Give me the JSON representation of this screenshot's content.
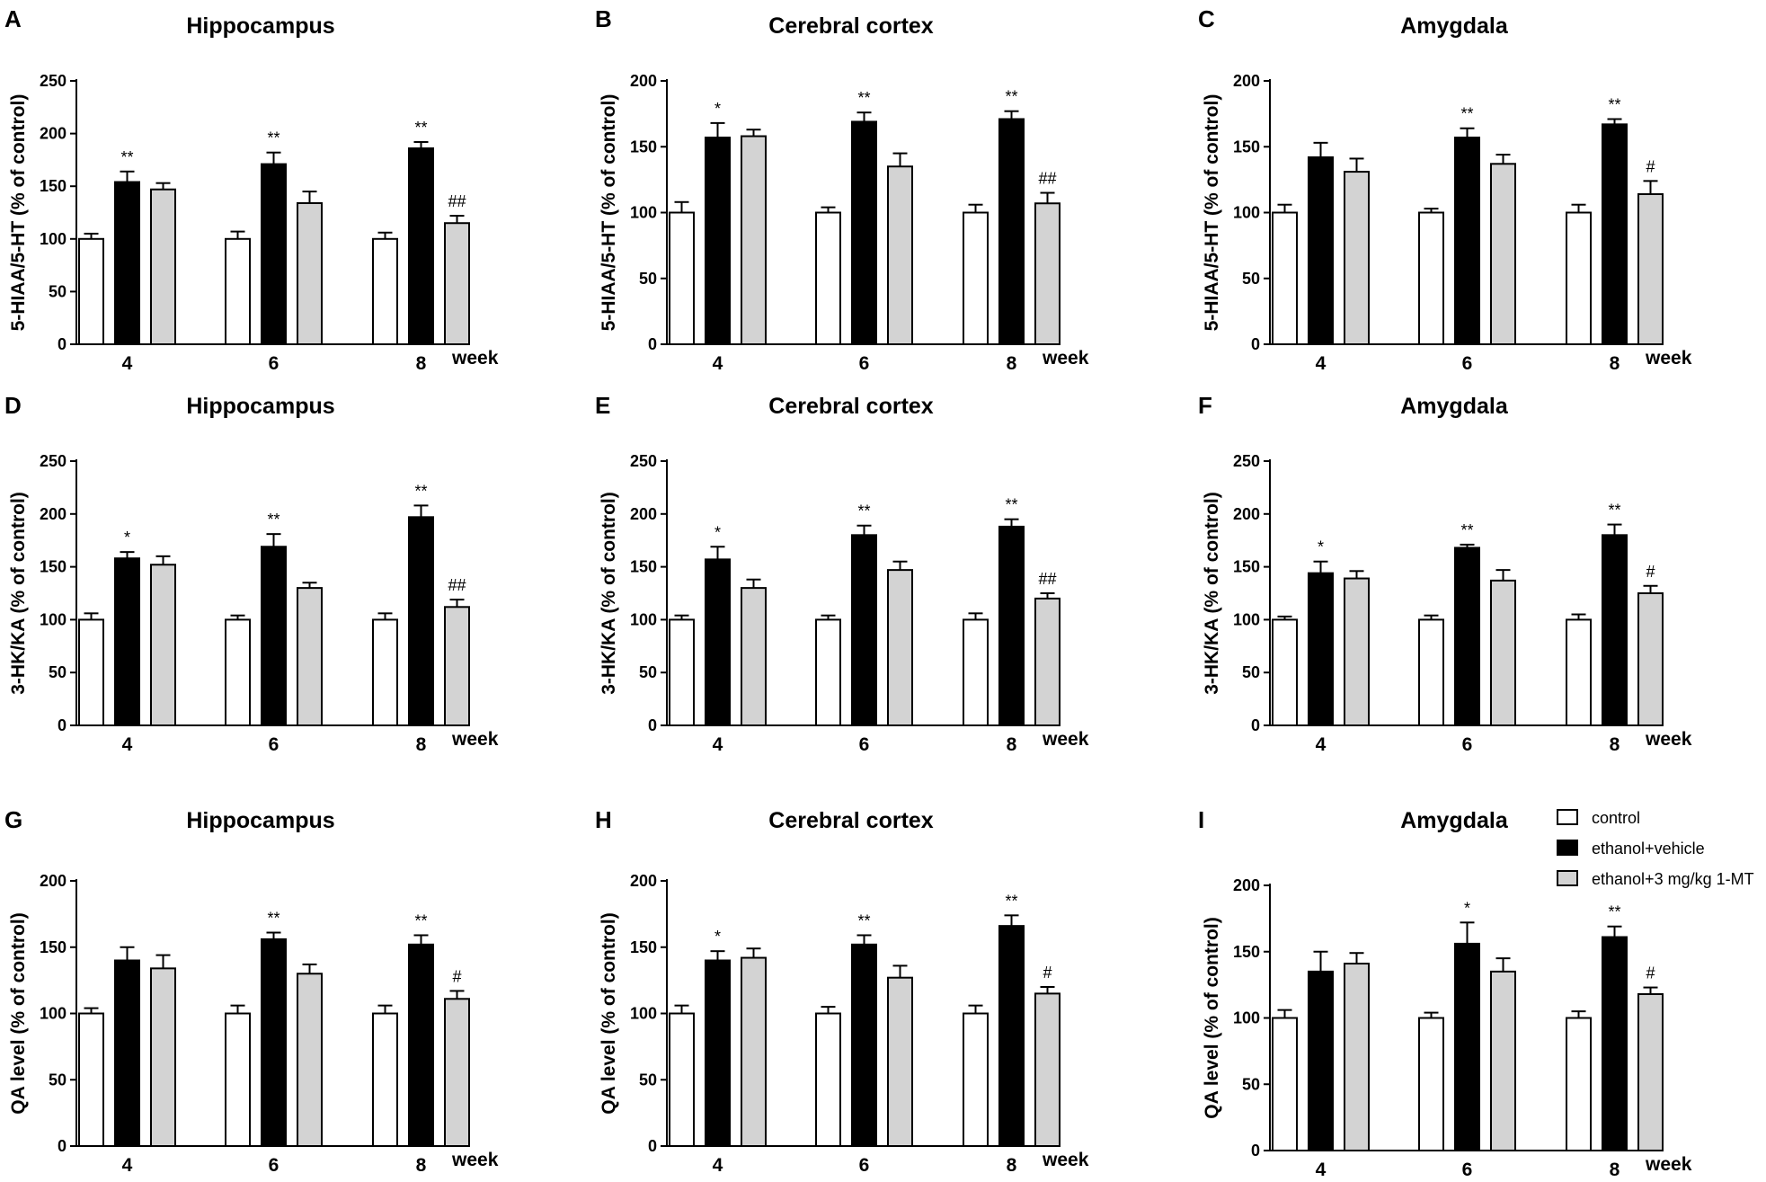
{
  "figure": {
    "legend": {
      "entries": [
        {
          "label": "control",
          "color": "#ffffff"
        },
        {
          "label": "ethanol+vehicle",
          "color": "#000000"
        },
        {
          "label": "ethanol+3 mg/kg 1-MT",
          "color": "#d3d3d3"
        }
      ]
    }
  },
  "chart_data": [
    {
      "panel": "A",
      "type": "bar",
      "title": "Hippocampus",
      "ylabel": "5-HIAA/5-HT (% of control)",
      "xlabel": "week",
      "categories": [
        "4",
        "6",
        "8"
      ],
      "ylim": [
        0,
        250
      ],
      "yticks": [
        "0",
        "50",
        "100",
        "150",
        "200",
        "250"
      ],
      "series": [
        {
          "name": "control",
          "values": [
            100,
            100,
            100
          ],
          "errors": [
            5,
            7,
            6
          ],
          "annotations": [
            "",
            "",
            ""
          ]
        },
        {
          "name": "ethanol+vehicle",
          "values": [
            154,
            171,
            186
          ],
          "errors": [
            10,
            11,
            6
          ],
          "annotations": [
            "**",
            "**",
            "**"
          ]
        },
        {
          "name": "ethanol+3 mg/kg 1-MT",
          "values": [
            147,
            134,
            115
          ],
          "errors": [
            6,
            11,
            7
          ],
          "annotations": [
            "",
            "",
            "##"
          ]
        }
      ]
    },
    {
      "panel": "B",
      "type": "bar",
      "title": "Cerebral cortex",
      "ylabel": "5-HIAA/5-HT (% of control)",
      "xlabel": "week",
      "categories": [
        "4",
        "6",
        "8"
      ],
      "ylim": [
        0,
        200
      ],
      "yticks": [
        "0",
        "50",
        "100",
        "150",
        "200"
      ],
      "series": [
        {
          "name": "control",
          "values": [
            100,
            100,
            100
          ],
          "errors": [
            8,
            4,
            6
          ],
          "annotations": [
            "",
            "",
            ""
          ]
        },
        {
          "name": "ethanol+vehicle",
          "values": [
            157,
            169,
            171
          ],
          "errors": [
            11,
            7,
            6
          ],
          "annotations": [
            "*",
            "**",
            "**"
          ]
        },
        {
          "name": "ethanol+3 mg/kg 1-MT",
          "values": [
            158,
            135,
            107
          ],
          "errors": [
            5,
            10,
            8
          ],
          "annotations": [
            "",
            "",
            "##"
          ]
        }
      ]
    },
    {
      "panel": "C",
      "type": "bar",
      "title": "Amygdala",
      "ylabel": "5-HIAA/5-HT (% of control)",
      "xlabel": "week",
      "categories": [
        "4",
        "6",
        "8"
      ],
      "ylim": [
        0,
        200
      ],
      "yticks": [
        "0",
        "50",
        "100",
        "150",
        "200"
      ],
      "series": [
        {
          "name": "control",
          "values": [
            100,
            100,
            100
          ],
          "errors": [
            6,
            3,
            6
          ],
          "annotations": [
            "",
            "",
            ""
          ]
        },
        {
          "name": "ethanol+vehicle",
          "values": [
            142,
            157,
            167
          ],
          "errors": [
            11,
            7,
            4
          ],
          "annotations": [
            "",
            "**",
            "**"
          ]
        },
        {
          "name": "ethanol+3 mg/kg 1-MT",
          "values": [
            131,
            137,
            114
          ],
          "errors": [
            10,
            7,
            10
          ],
          "annotations": [
            "",
            "",
            "#"
          ]
        }
      ]
    },
    {
      "panel": "D",
      "type": "bar",
      "title": "Hippocampus",
      "ylabel": "3-HK/KA (% of control)",
      "xlabel": "week",
      "categories": [
        "4",
        "6",
        "8"
      ],
      "ylim": [
        0,
        250
      ],
      "yticks": [
        "0",
        "50",
        "100",
        "150",
        "200",
        "250"
      ],
      "series": [
        {
          "name": "control",
          "values": [
            100,
            100,
            100
          ],
          "errors": [
            6,
            4,
            6
          ],
          "annotations": [
            "",
            "",
            ""
          ]
        },
        {
          "name": "ethanol+vehicle",
          "values": [
            158,
            169,
            197
          ],
          "errors": [
            6,
            12,
            11
          ],
          "annotations": [
            "*",
            "**",
            "**"
          ]
        },
        {
          "name": "ethanol+3 mg/kg 1-MT",
          "values": [
            152,
            130,
            112
          ],
          "errors": [
            8,
            5,
            7
          ],
          "annotations": [
            "",
            "",
            "##"
          ]
        }
      ]
    },
    {
      "panel": "E",
      "type": "bar",
      "title": "Cerebral cortex",
      "ylabel": "3-HK/KA (% of control)",
      "xlabel": "week",
      "categories": [
        "4",
        "6",
        "8"
      ],
      "ylim": [
        0,
        250
      ],
      "yticks": [
        "0",
        "50",
        "100",
        "150",
        "200",
        "250"
      ],
      "series": [
        {
          "name": "control",
          "values": [
            100,
            100,
            100
          ],
          "errors": [
            4,
            4,
            6
          ],
          "annotations": [
            "",
            "",
            ""
          ]
        },
        {
          "name": "ethanol+vehicle",
          "values": [
            157,
            180,
            188
          ],
          "errors": [
            12,
            9,
            7
          ],
          "annotations": [
            "*",
            "**",
            "**"
          ]
        },
        {
          "name": "ethanol+3 mg/kg 1-MT",
          "values": [
            130,
            147,
            120
          ],
          "errors": [
            8,
            8,
            5
          ],
          "annotations": [
            "",
            "",
            "##"
          ]
        }
      ]
    },
    {
      "panel": "F",
      "type": "bar",
      "title": "Amygdala",
      "ylabel": "3-HK/KA (% of control)",
      "xlabel": "week",
      "categories": [
        "4",
        "6",
        "8"
      ],
      "ylim": [
        0,
        250
      ],
      "yticks": [
        "0",
        "50",
        "100",
        "150",
        "200",
        "250"
      ],
      "series": [
        {
          "name": "control",
          "values": [
            100,
            100,
            100
          ],
          "errors": [
            3,
            4,
            5
          ],
          "annotations": [
            "",
            "",
            ""
          ]
        },
        {
          "name": "ethanol+vehicle",
          "values": [
            144,
            168,
            180
          ],
          "errors": [
            11,
            3,
            10
          ],
          "annotations": [
            "*",
            "**",
            "**"
          ]
        },
        {
          "name": "ethanol+3 mg/kg 1-MT",
          "values": [
            139,
            137,
            125
          ],
          "errors": [
            7,
            10,
            7
          ],
          "annotations": [
            "",
            "",
            "#"
          ]
        }
      ]
    },
    {
      "panel": "G",
      "type": "bar",
      "title": "Hippocampus",
      "ylabel": "QA level (% of control)",
      "xlabel": "week",
      "categories": [
        "4",
        "6",
        "8"
      ],
      "ylim": [
        0,
        200
      ],
      "yticks": [
        "0",
        "50",
        "100",
        "150",
        "200"
      ],
      "series": [
        {
          "name": "control",
          "values": [
            100,
            100,
            100
          ],
          "errors": [
            4,
            6,
            6
          ],
          "annotations": [
            "",
            "",
            ""
          ]
        },
        {
          "name": "ethanol+vehicle",
          "values": [
            140,
            156,
            152
          ],
          "errors": [
            10,
            5,
            7
          ],
          "annotations": [
            "",
            "**",
            "**"
          ]
        },
        {
          "name": "ethanol+3 mg/kg 1-MT",
          "values": [
            134,
            130,
            111
          ],
          "errors": [
            10,
            7,
            6
          ],
          "annotations": [
            "",
            "",
            "#"
          ]
        }
      ]
    },
    {
      "panel": "H",
      "type": "bar",
      "title": "Cerebral cortex",
      "ylabel": "QA level (% of control)",
      "xlabel": "week",
      "categories": [
        "4",
        "6",
        "8"
      ],
      "ylim": [
        0,
        200
      ],
      "yticks": [
        "0",
        "50",
        "100",
        "150",
        "200"
      ],
      "series": [
        {
          "name": "control",
          "values": [
            100,
            100,
            100
          ],
          "errors": [
            6,
            5,
            6
          ],
          "annotations": [
            "",
            "",
            ""
          ]
        },
        {
          "name": "ethanol+vehicle",
          "values": [
            140,
            152,
            166
          ],
          "errors": [
            7,
            7,
            8
          ],
          "annotations": [
            "*",
            "**",
            "**"
          ]
        },
        {
          "name": "ethanol+3 mg/kg 1-MT",
          "values": [
            142,
            127,
            115
          ],
          "errors": [
            7,
            9,
            5
          ],
          "annotations": [
            "",
            "",
            "#"
          ]
        }
      ]
    },
    {
      "panel": "I",
      "type": "bar",
      "title": "Amygdala",
      "ylabel": "QA level (% of control)",
      "xlabel": "week",
      "categories": [
        "4",
        "6",
        "8"
      ],
      "ylim": [
        0,
        200
      ],
      "yticks": [
        "0",
        "50",
        "100",
        "150",
        "200"
      ],
      "series": [
        {
          "name": "control",
          "values": [
            100,
            100,
            100
          ],
          "errors": [
            6,
            4,
            5
          ],
          "annotations": [
            "",
            "",
            ""
          ]
        },
        {
          "name": "ethanol+vehicle",
          "values": [
            135,
            156,
            161
          ],
          "errors": [
            15,
            16,
            8
          ],
          "annotations": [
            "",
            "*",
            "**"
          ]
        },
        {
          "name": "ethanol+3 mg/kg 1-MT",
          "values": [
            141,
            135,
            118
          ],
          "errors": [
            8,
            10,
            5
          ],
          "annotations": [
            "",
            "",
            "#"
          ]
        }
      ]
    }
  ]
}
